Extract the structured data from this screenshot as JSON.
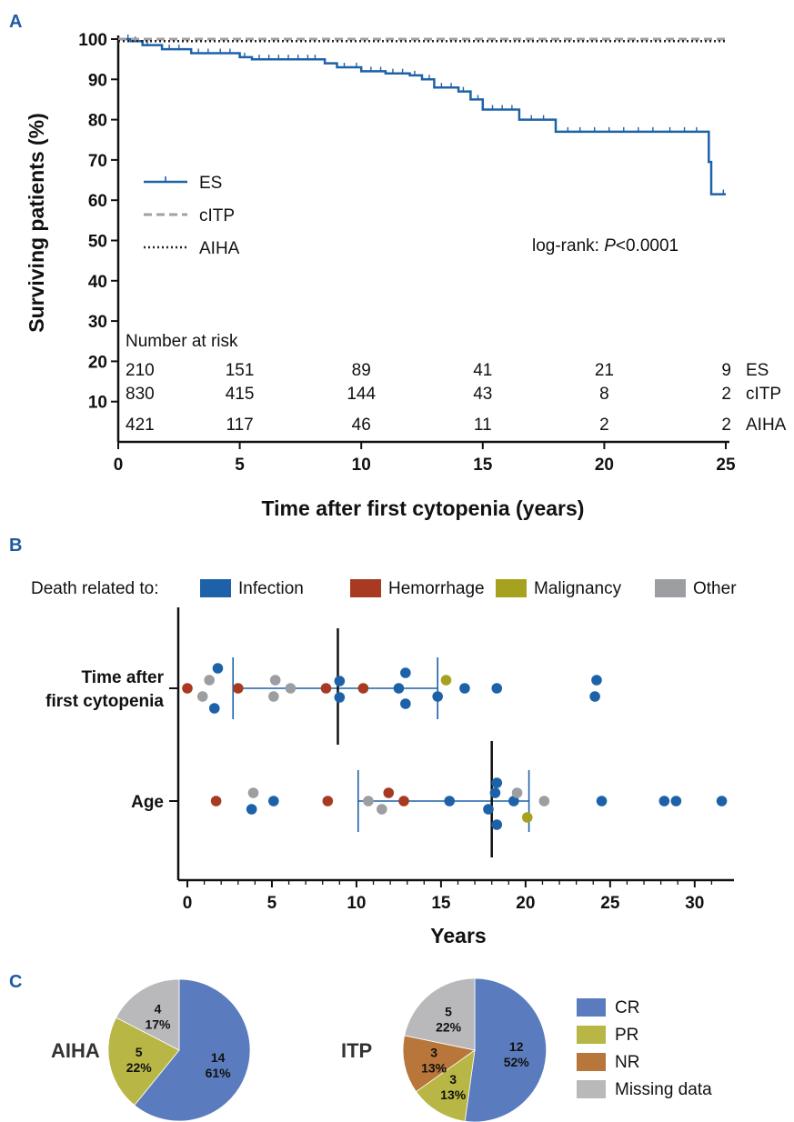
{
  "panels": {
    "A": "A",
    "B": "B",
    "C": "C"
  },
  "colors": {
    "ES": "#1d62a8",
    "cITP": "#a0a0a0",
    "AIHA": "#222222",
    "Infection": "#1d62a8",
    "Hemorrhage": "#a83a22",
    "Malignancy": "#a6a21f",
    "Other": "#9d9ea2",
    "CR": "#5a7cbf",
    "PR": "#b8b745",
    "NR": "#b8763a",
    "Missing data": "#b9b9bc"
  },
  "chart_data": [
    {
      "type": "line",
      "subtype": "kaplan-meier",
      "xlabel": "Time after first cytopenia (years)",
      "ylabel": "Surviving patients (%)",
      "xlim": [
        0,
        25
      ],
      "ylim": [
        0,
        100
      ],
      "xticks": [
        "0",
        "5",
        "10",
        "15",
        "20",
        "25"
      ],
      "yticks": [
        "10",
        "20",
        "30",
        "40",
        "50",
        "60",
        "70",
        "80",
        "90",
        "100"
      ],
      "legend_placement": "left",
      "annotation": {
        "prefix": "log-rank: ",
        "p_symbol": "P",
        "value": "<0.0001"
      },
      "series": [
        {
          "name": "ES",
          "steps": [
            [
              0,
              100
            ],
            [
              0.5,
              99.5
            ],
            [
              1,
              98.5
            ],
            [
              1.8,
              97.5
            ],
            [
              3,
              96.5
            ],
            [
              5,
              95.5
            ],
            [
              5.5,
              95
            ],
            [
              8.5,
              94
            ],
            [
              9,
              93
            ],
            [
              10,
              92
            ],
            [
              11,
              91.5
            ],
            [
              12,
              91
            ],
            [
              12.5,
              90
            ],
            [
              13,
              88
            ],
            [
              14,
              87
            ],
            [
              14.5,
              85
            ],
            [
              15,
              82.5
            ],
            [
              16.5,
              80
            ],
            [
              18,
              77
            ],
            [
              24.3,
              77
            ],
            [
              24.3,
              69.5
            ],
            [
              24.4,
              69.5
            ],
            [
              24.4,
              61.5
            ],
            [
              25,
              61.5
            ]
          ],
          "censors": [
            0.4,
            0.7,
            1.2,
            2.1,
            2.5,
            3.3,
            3.7,
            4.2,
            4.6,
            5.2,
            5.8,
            6.2,
            6.6,
            7,
            7.4,
            7.8,
            8.1,
            9.3,
            9.8,
            10.4,
            10.8,
            11.3,
            11.7,
            12.2,
            12.8,
            13.3,
            13.7,
            14.2,
            14.8,
            15.4,
            15.8,
            16.2,
            17,
            17.5,
            18.5,
            19,
            19.6,
            20.2,
            20.8,
            21.4,
            22,
            22.7,
            23.3,
            23.8,
            24.9
          ]
        },
        {
          "name": "cITP",
          "steps": [
            [
              0,
              100
            ],
            [
              25,
              100
            ]
          ]
        },
        {
          "name": "AIHA",
          "steps": [
            [
              0,
              99.5
            ],
            [
              25,
              99.5
            ]
          ]
        }
      ],
      "number_at_risk": {
        "title": "Number at risk",
        "times": [
          0,
          5,
          10,
          15,
          20,
          25
        ],
        "rows": [
          {
            "label": "ES",
            "values": [
              "210",
              "151",
              "89",
              "41",
              "21",
              "9"
            ]
          },
          {
            "label": "cITP",
            "values": [
              "830",
              "415",
              "144",
              "43",
              "8",
              "2"
            ]
          },
          {
            "label": "AIHA",
            "values": [
              "421",
              "117",
              "46",
              "11",
              "2",
              "2"
            ]
          }
        ]
      }
    },
    {
      "type": "scatter",
      "subtype": "dot-plot",
      "xlabel": "Years",
      "xlim": [
        0,
        32
      ],
      "xticks": [
        "0",
        "5",
        "10",
        "15",
        "20",
        "25",
        "30"
      ],
      "legend_title": "Death related to:",
      "legend_placement": "top",
      "categories": [
        "Infection",
        "Hemorrhage",
        "Malignancy",
        "Other"
      ],
      "rows": [
        {
          "label_lines": [
            "Time after",
            "first cytopenia"
          ],
          "median": 8.9,
          "iqr": [
            2.7,
            14.8
          ],
          "points": [
            {
              "x": 1.8,
              "dy": -1.1,
              "cat": "Infection"
            },
            {
              "x": 1.6,
              "dy": 1.1,
              "cat": "Infection"
            },
            {
              "x": 9,
              "dy": -0.4,
              "cat": "Infection"
            },
            {
              "x": 9,
              "dy": 0.5,
              "cat": "Infection"
            },
            {
              "x": 12.9,
              "dy": -0.85,
              "cat": "Infection"
            },
            {
              "x": 12.9,
              "dy": 0.85,
              "cat": "Infection"
            },
            {
              "x": 12.5,
              "dy": 0,
              "cat": "Infection"
            },
            {
              "x": 14.8,
              "dy": 0.45,
              "cat": "Infection"
            },
            {
              "x": 16.4,
              "dy": 0,
              "cat": "Infection"
            },
            {
              "x": 18.3,
              "dy": 0,
              "cat": "Infection"
            },
            {
              "x": 24.2,
              "dy": -0.45,
              "cat": "Infection"
            },
            {
              "x": 24.1,
              "dy": 0.45,
              "cat": "Infection"
            },
            {
              "x": 0,
              "dy": 0,
              "cat": "Hemorrhage"
            },
            {
              "x": 3,
              "dy": 0,
              "cat": "Hemorrhage"
            },
            {
              "x": 8.2,
              "dy": 0,
              "cat": "Hemorrhage"
            },
            {
              "x": 10.4,
              "dy": 0,
              "cat": "Hemorrhage"
            },
            {
              "x": 15.3,
              "dy": -0.45,
              "cat": "Malignancy"
            },
            {
              "x": 1.3,
              "dy": -0.45,
              "cat": "Other"
            },
            {
              "x": 0.9,
              "dy": 0.45,
              "cat": "Other"
            },
            {
              "x": 5.2,
              "dy": -0.45,
              "cat": "Other"
            },
            {
              "x": 5.1,
              "dy": 0.45,
              "cat": "Other"
            },
            {
              "x": 6.1,
              "dy": 0,
              "cat": "Other"
            }
          ]
        },
        {
          "label_lines": [
            "Age"
          ],
          "median": 18.0,
          "iqr": [
            10.1,
            20.2
          ],
          "points": [
            {
              "x": 3.8,
              "dy": 0.45,
              "cat": "Infection"
            },
            {
              "x": 5.1,
              "dy": 0,
              "cat": "Infection"
            },
            {
              "x": 15.5,
              "dy": 0,
              "cat": "Infection"
            },
            {
              "x": 17.8,
              "dy": 0.45,
              "cat": "Infection"
            },
            {
              "x": 18.3,
              "dy": -1.0,
              "cat": "Infection"
            },
            {
              "x": 18.2,
              "dy": -0.45,
              "cat": "Infection"
            },
            {
              "x": 18.3,
              "dy": 1.3,
              "cat": "Infection"
            },
            {
              "x": 19.3,
              "dy": 0,
              "cat": "Infection"
            },
            {
              "x": 24.5,
              "dy": 0,
              "cat": "Infection"
            },
            {
              "x": 28.2,
              "dy": 0,
              "cat": "Infection"
            },
            {
              "x": 28.9,
              "dy": 0,
              "cat": "Infection"
            },
            {
              "x": 31.6,
              "dy": 0,
              "cat": "Infection"
            },
            {
              "x": 1.7,
              "dy": 0,
              "cat": "Hemorrhage"
            },
            {
              "x": 8.3,
              "dy": 0,
              "cat": "Hemorrhage"
            },
            {
              "x": 11.9,
              "dy": -0.45,
              "cat": "Hemorrhage"
            },
            {
              "x": 12.8,
              "dy": 0,
              "cat": "Hemorrhage"
            },
            {
              "x": 20.1,
              "dy": 0.9,
              "cat": "Malignancy"
            },
            {
              "x": 3.9,
              "dy": -0.45,
              "cat": "Other"
            },
            {
              "x": 10.7,
              "dy": 0,
              "cat": "Other"
            },
            {
              "x": 11.5,
              "dy": 0.45,
              "cat": "Other"
            },
            {
              "x": 19.5,
              "dy": -0.45,
              "cat": "Other"
            },
            {
              "x": 21.1,
              "dy": 0,
              "cat": "Other"
            }
          ]
        }
      ]
    },
    {
      "type": "pie",
      "title": "AIHA",
      "slices": [
        {
          "name": "CR",
          "value": 14,
          "label_count": "14",
          "label_pct": "61%"
        },
        {
          "name": "PR",
          "value": 5,
          "label_count": "5",
          "label_pct": "22%"
        },
        {
          "name": "Missing data",
          "value": 4,
          "label_count": "4",
          "label_pct": "17%"
        }
      ]
    },
    {
      "type": "pie",
      "title": "ITP",
      "slices": [
        {
          "name": "CR",
          "value": 12,
          "label_count": "12",
          "label_pct": "52%"
        },
        {
          "name": "PR",
          "value": 3,
          "label_count": "3",
          "label_pct": "13%"
        },
        {
          "name": "NR",
          "value": 3,
          "label_count": "3",
          "label_pct": "13%"
        },
        {
          "name": "Missing data",
          "value": 5,
          "label_count": "5",
          "label_pct": "22%"
        }
      ]
    }
  ],
  "pie_legend": [
    "CR",
    "PR",
    "NR",
    "Missing data"
  ]
}
